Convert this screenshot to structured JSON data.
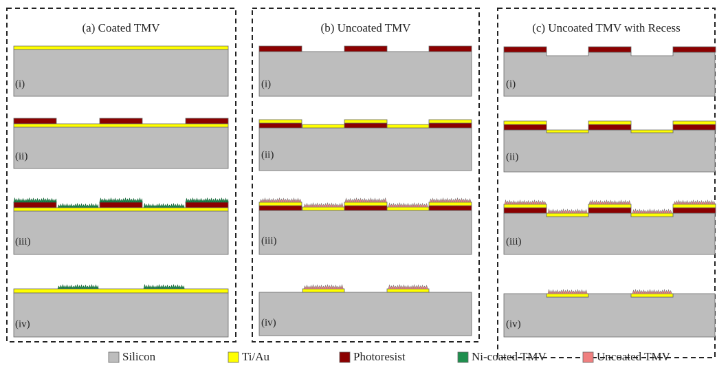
{
  "panels": [
    {
      "title": "(a) Coated TMV",
      "steps": [
        "(i)",
        "(ii)",
        "(iii)",
        "(iv)"
      ]
    },
    {
      "title": "(b) Uncoated TMV",
      "steps": [
        "(i)",
        "(ii)",
        "(iii)",
        "(iv)"
      ]
    },
    {
      "title": "(c)  Uncoated TMV with Recess",
      "steps": [
        "(i)",
        "(ii)",
        "(iii)",
        "(iv)"
      ]
    }
  ],
  "legend": [
    "Silicon",
    "Ti/Au",
    "Photoresist",
    "Ni-coated TMV",
    "Uncoated TMV"
  ]
}
